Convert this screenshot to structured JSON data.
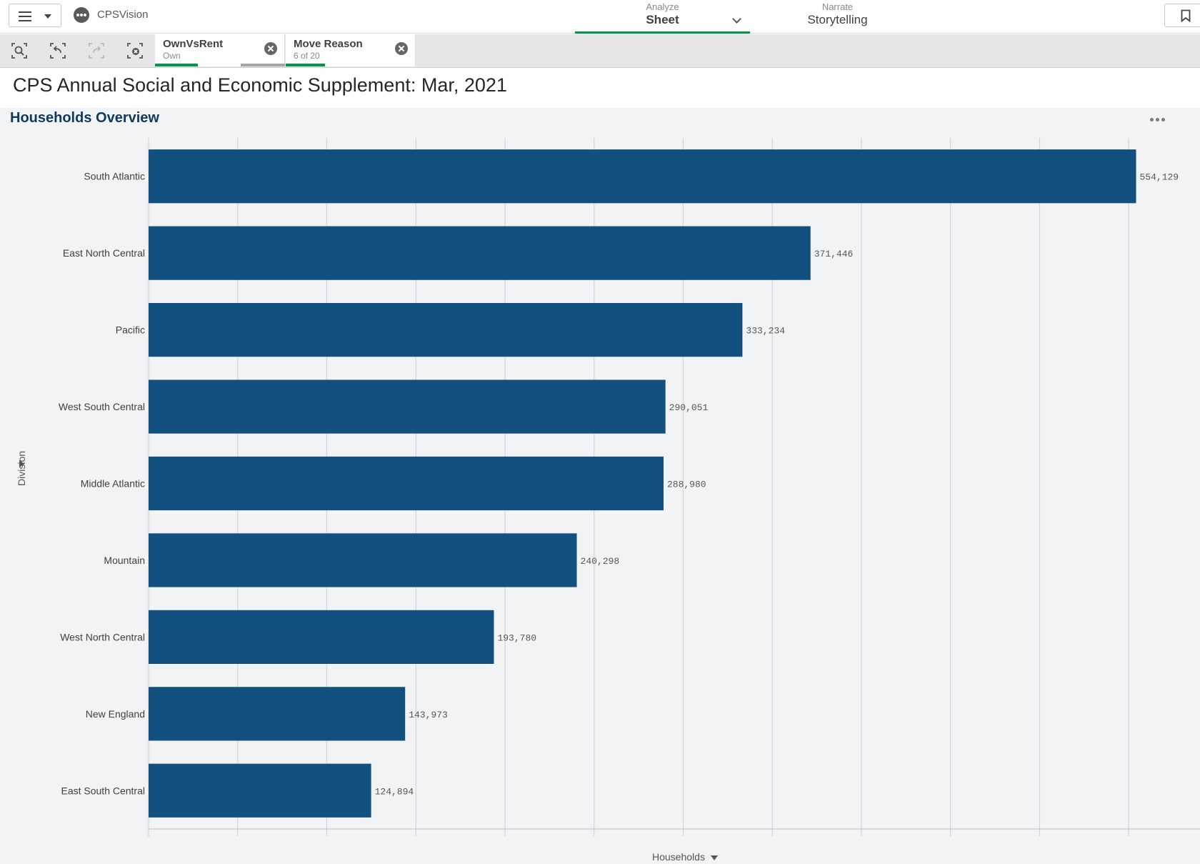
{
  "topbar": {
    "app_name": "CPSVision",
    "analyze_small": "Analyze",
    "analyze_big": "Sheet",
    "narrate_small": "Narrate",
    "narrate_big": "Storytelling"
  },
  "selections": [
    {
      "field": "OwnVsRent",
      "value": "Own"
    },
    {
      "field": "Move Reason",
      "value": "6 of 20"
    }
  ],
  "sheet_title": "CPS Annual Social and Economic Supplement: Mar, 2021",
  "panel": {
    "title": "Households Overview"
  },
  "colors": {
    "bar": "#11507f",
    "accent": "#009845",
    "grid": "#d4d6da"
  },
  "chart_data": {
    "type": "bar",
    "orientation": "horizontal",
    "title": "Households Overview",
    "xlabel": "Households",
    "ylabel": "Division",
    "categories": [
      "South Atlantic",
      "East North Central",
      "Pacific",
      "West South Central",
      "Middle Atlantic",
      "Mountain",
      "West North Central",
      "New England",
      "East South Central"
    ],
    "values": [
      554129,
      371446,
      333234,
      290051,
      288980,
      240298,
      193780,
      143973,
      124894
    ],
    "value_labels": [
      "554,129",
      "371,446",
      "333,234",
      "290,051",
      "288,980",
      "240,298",
      "193,780",
      "143,973",
      "124,894"
    ],
    "xlim": [
      0,
      590000
    ],
    "grid_step": 50000,
    "grid": true,
    "legend": "none"
  }
}
